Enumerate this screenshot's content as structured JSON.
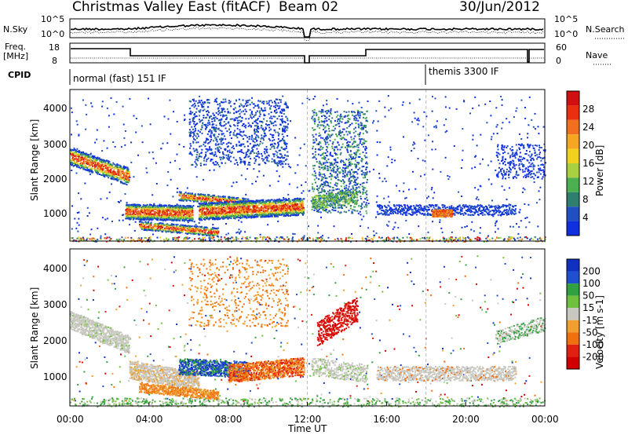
{
  "header": {
    "title": "Christmas Valley East (fitACF)",
    "beam": "Beam 02",
    "date": "30/Jun/2012"
  },
  "aux": {
    "nsky_label": "N.Sky",
    "nsky_ticks": [
      "10^5",
      "10^0"
    ],
    "nsearch_label": "N.Search",
    "nsearch_ticks": [
      "10^5",
      "10^0"
    ],
    "freq_label": "Freq.",
    "freq_unit": "[MHz]",
    "freq_ticks": [
      "18",
      "8"
    ],
    "nave_label": "Nave",
    "nave_ticks": [
      "60",
      "0"
    ],
    "cpid_label": "CPID",
    "cpid_segments": [
      "normal (fast) 151 IF",
      "themis 3300 IF"
    ]
  },
  "chart_data": [
    {
      "type": "heatmap",
      "ylabel": "Slant Range [km]",
      "xlabel": "Time UT",
      "x_ticks": [
        "00:00",
        "04:00",
        "08:00",
        "12:00",
        "16:00",
        "20:00",
        "00:00"
      ],
      "y_ticks": [
        "1000",
        "2000",
        "3000",
        "4000"
      ],
      "xlim_hours": [
        0,
        24
      ],
      "ylim_km": [
        180,
        4560
      ],
      "colorbar": {
        "label": "Power [dB]",
        "ticks": [
          "28",
          "24",
          "20",
          "16",
          "12",
          "8",
          "4"
        ],
        "colors": [
          "#1030e0",
          "#2050c0",
          "#2f7f6f",
          "#4caf50",
          "#a8d040",
          "#f2d020",
          "#f5a623",
          "#f07020",
          "#e83010",
          "#d01010"
        ]
      },
      "features": [
        {
          "desc": "band",
          "t_start": 0.0,
          "t_end": 3.0,
          "range_start": 2650,
          "range_end": 2000,
          "level": "high"
        },
        {
          "desc": "band",
          "t_start": 3.0,
          "t_end": 6.0,
          "range_start": 1000,
          "range_end": 1000,
          "level": "very high"
        },
        {
          "desc": "band",
          "t_start": 6.5,
          "t_end": 11.8,
          "range_start": 1050,
          "range_end": 1200,
          "level": "high"
        },
        {
          "desc": "band",
          "t_start": 15.5,
          "t_end": 22.5,
          "range_start": 1100,
          "range_end": 1100,
          "level": "low"
        }
      ]
    },
    {
      "type": "heatmap",
      "ylabel": "Slant Range [km]",
      "xlabel": "Time UT",
      "x_ticks": [
        "00:00",
        "04:00",
        "08:00",
        "12:00",
        "16:00",
        "20:00",
        "00:00"
      ],
      "y_ticks": [
        "1000",
        "2000",
        "3000",
        "4000"
      ],
      "xlim_hours": [
        0,
        24
      ],
      "ylim_km": [
        180,
        4560
      ],
      "colorbar": {
        "label": "Velocity [m s-1]",
        "ticks": [
          "200",
          "100",
          "50",
          "15",
          "-15",
          "-50",
          "-100",
          "-200"
        ],
        "colors": [
          "#1030c0",
          "#2050d0",
          "#30a040",
          "#70c040",
          "#c8c8c0",
          "#f0a030",
          "#f07010",
          "#e02010",
          "#d00000"
        ]
      },
      "features": [
        {
          "desc": "ground scatter",
          "t_start": 0.0,
          "t_end": 3.0,
          "range_start": 2600,
          "range_end": 1900,
          "velocity": "near zero"
        },
        {
          "desc": "negative velocity",
          "t_start": 3.0,
          "t_end": 6.0,
          "range_start": 800,
          "range_end": 1000,
          "velocity": "-50"
        },
        {
          "desc": "positive velocity",
          "t_start": 5.5,
          "t_end": 9.0,
          "range_start": 1200,
          "range_end": 1300,
          "velocity": "100"
        },
        {
          "desc": "strong negative",
          "t_start": 12.5,
          "t_end": 14.5,
          "range_start": 2200,
          "range_end": 2900,
          "velocity": "-200"
        }
      ]
    }
  ]
}
